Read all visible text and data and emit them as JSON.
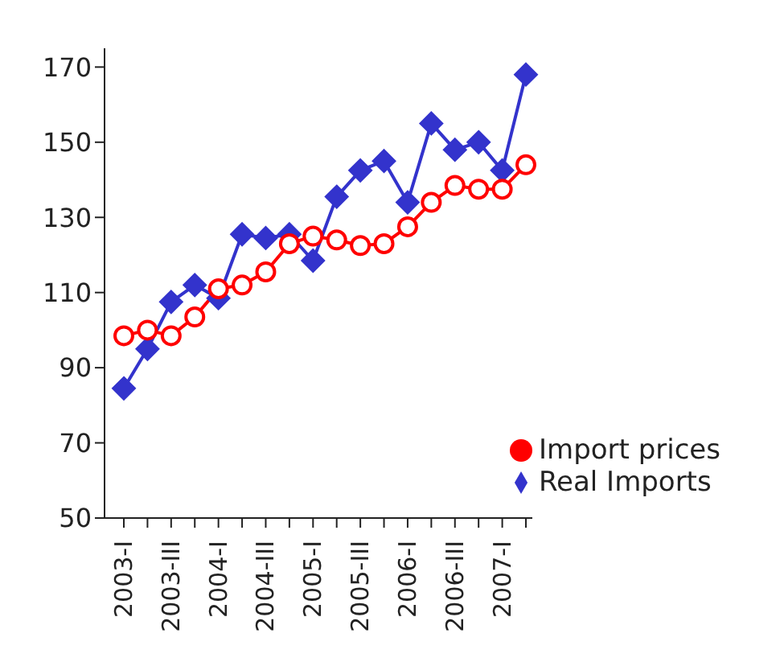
{
  "chart_data": {
    "type": "line",
    "categories": [
      "2003-I",
      null,
      "2003-III",
      null,
      "2004-I",
      null,
      "2004-III",
      null,
      "2005-I",
      null,
      "2005-III",
      null,
      "2006-I",
      null,
      "2006-III",
      null,
      "2007-I",
      null
    ],
    "series": [
      {
        "name": "Real Imports",
        "color": "#3333cc",
        "marker": "diamond",
        "values": [
          84.5,
          95,
          107.5,
          112,
          108.5,
          125.5,
          124.5,
          125.5,
          118.5,
          135.5,
          142.5,
          145,
          134,
          155,
          148,
          150,
          142.5,
          168
        ]
      },
      {
        "name": "Import prices",
        "color": "#ff0000",
        "marker": "circle",
        "values": [
          98.5,
          100,
          98.5,
          103.5,
          111,
          112,
          115.5,
          123,
          125,
          124,
          122.5,
          123,
          127.5,
          134,
          138.5,
          137.5,
          137.5,
          144
        ]
      }
    ],
    "ylim": [
      50,
      175
    ],
    "yticks": [
      50,
      70,
      90,
      110,
      130,
      150,
      170
    ],
    "grid": false,
    "legend": "bottom right",
    "line_style": "solid"
  }
}
